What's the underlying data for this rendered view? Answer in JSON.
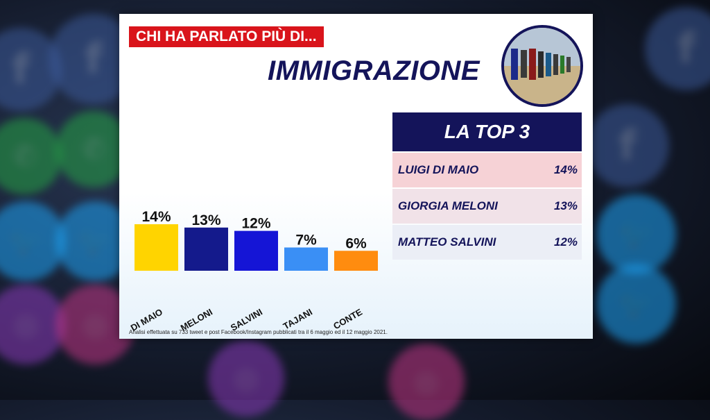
{
  "kicker": "CHI HA PARLATO PIÙ DI...",
  "headline": "IMMIGRAZIONE",
  "top3": {
    "title": "LA TOP 3",
    "rows": [
      {
        "name": "LUIGI DI MAIO",
        "value": "14%"
      },
      {
        "name": "GIORGIA MELONI",
        "value": "13%"
      },
      {
        "name": "MATTEO SALVINI",
        "value": "12%"
      }
    ]
  },
  "footnote": "Analisi effettuata su 733 tweet e post Facebook/Instagram pubblicati tra il 6 maggio ed il 12 maggio 2021.",
  "background_icons": [
    "facebook-icon",
    "whatsapp-icon",
    "twitter-icon",
    "instagram-icon"
  ],
  "chart_data": {
    "type": "bar",
    "title": "IMMIGRAZIONE",
    "categories": [
      "DI MAIO",
      "MELONI",
      "SALVINI",
      "TAJANI",
      "CONTE"
    ],
    "values": [
      14,
      13,
      12,
      7,
      6
    ],
    "value_labels": [
      "14%",
      "13%",
      "12%",
      "7%",
      "6%"
    ],
    "colors": [
      "#ffd400",
      "#141a8c",
      "#1515d6",
      "#3a8ff5",
      "#ff8c0f"
    ],
    "xlabel": "",
    "ylabel": "",
    "ylim": [
      0,
      14
    ],
    "grid": false,
    "legend": "none"
  }
}
